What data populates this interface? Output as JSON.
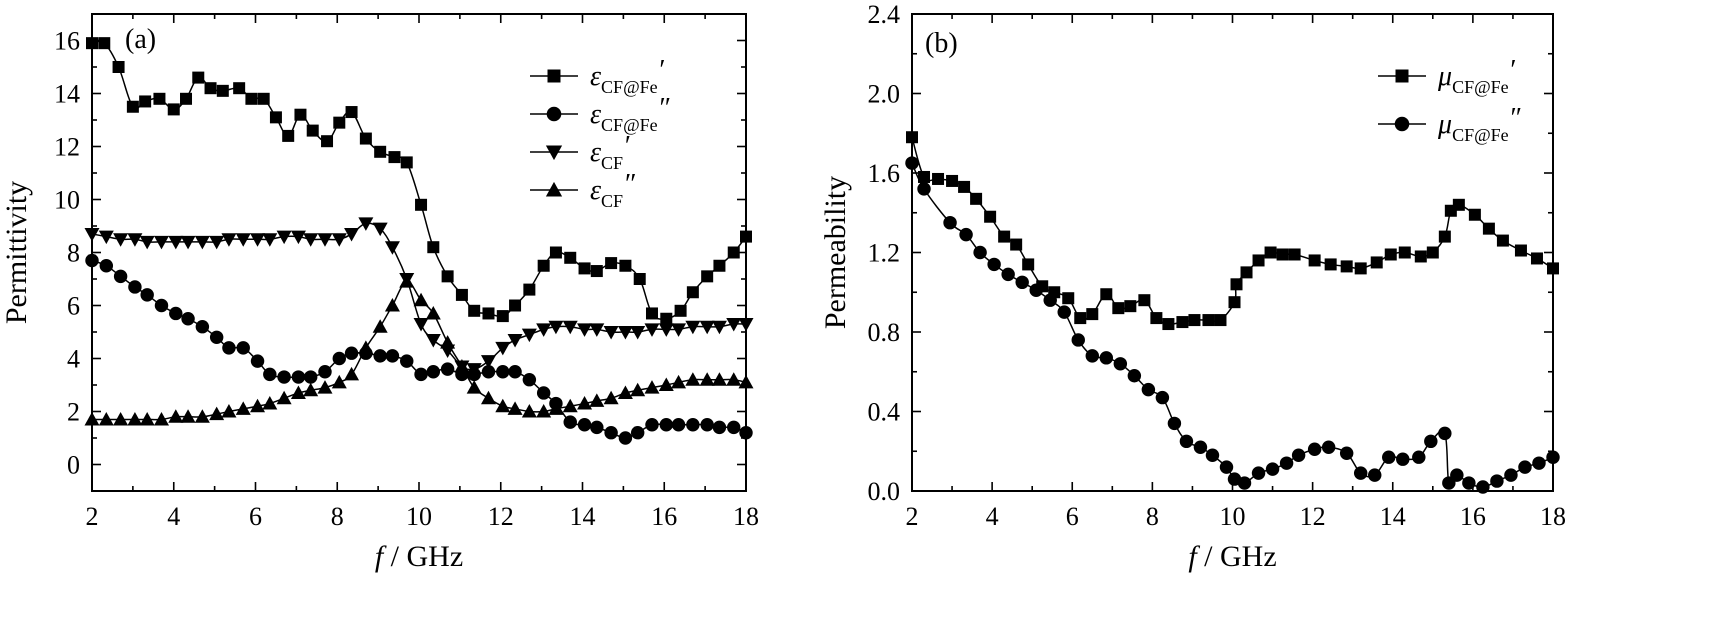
{
  "chart_data": [
    {
      "type": "line",
      "panel_label": "(a)",
      "xlabel_italic": "f",
      "xlabel_rest": " / GHz",
      "ylabel": "Permittivity",
      "xlim": [
        2,
        18
      ],
      "ylim": [
        -1,
        17
      ],
      "xticks": [
        2,
        4,
        6,
        8,
        10,
        12,
        14,
        16,
        18
      ],
      "yticks": [
        0,
        2,
        4,
        6,
        8,
        10,
        12,
        14,
        16
      ],
      "tick_decimals": 0,
      "grid": false,
      "legend_position": "top-right",
      "series": [
        {
          "symbol": "ε",
          "sub": "CF@Fe",
          "prime": "′",
          "marker": "square",
          "x": [
            2,
            2.3,
            2.65,
            3,
            3.3,
            3.65,
            4,
            4.3,
            4.6,
            4.9,
            5.2,
            5.6,
            5.9,
            6.2,
            6.5,
            6.8,
            7.1,
            7.4,
            7.75,
            8.05,
            8.35,
            8.7,
            9.05,
            9.4,
            9.7,
            10.05,
            10.35,
            10.7,
            11.05,
            11.35,
            11.7,
            12.05,
            12.35,
            12.7,
            13.05,
            13.35,
            13.7,
            14.05,
            14.35,
            14.7,
            15.05,
            15.4,
            15.7,
            16.05,
            16.4,
            16.7,
            17.05,
            17.35,
            17.7,
            18
          ],
          "y": [
            15.9,
            15.9,
            15.0,
            13.5,
            13.7,
            13.8,
            13.4,
            13.8,
            14.6,
            14.2,
            14.1,
            14.2,
            13.8,
            13.8,
            13.1,
            12.4,
            13.2,
            12.6,
            12.2,
            12.9,
            13.3,
            12.3,
            11.8,
            11.6,
            11.4,
            9.8,
            8.2,
            7.1,
            6.4,
            5.8,
            5.7,
            5.6,
            6.0,
            6.6,
            7.5,
            8.0,
            7.8,
            7.4,
            7.3,
            7.6,
            7.5,
            7.0,
            5.7,
            5.5,
            5.8,
            6.5,
            7.1,
            7.5,
            8.0,
            8.6
          ]
        },
        {
          "symbol": "ε",
          "sub": "CF@Fe",
          "prime": "″",
          "marker": "circle",
          "x": [
            2,
            2.35,
            2.7,
            3.05,
            3.35,
            3.7,
            4.05,
            4.35,
            4.7,
            5.05,
            5.35,
            5.7,
            6.05,
            6.35,
            6.7,
            7.05,
            7.35,
            7.7,
            8.05,
            8.35,
            8.7,
            9.05,
            9.35,
            9.7,
            10.05,
            10.35,
            10.7,
            11.05,
            11.35,
            11.7,
            12.05,
            12.35,
            12.7,
            13.05,
            13.35,
            13.7,
            14.05,
            14.35,
            14.7,
            15.05,
            15.35,
            15.7,
            16.05,
            16.35,
            16.7,
            17.05,
            17.35,
            17.7,
            18
          ],
          "y": [
            7.7,
            7.5,
            7.1,
            6.7,
            6.4,
            6.0,
            5.7,
            5.5,
            5.2,
            4.8,
            4.4,
            4.4,
            3.9,
            3.4,
            3.3,
            3.3,
            3.3,
            3.5,
            4.0,
            4.2,
            4.2,
            4.1,
            4.1,
            3.9,
            3.4,
            3.5,
            3.6,
            3.4,
            3.4,
            3.5,
            3.5,
            3.5,
            3.2,
            2.7,
            2.3,
            1.6,
            1.5,
            1.4,
            1.2,
            1.0,
            1.2,
            1.5,
            1.5,
            1.5,
            1.5,
            1.5,
            1.4,
            1.4,
            1.2
          ]
        },
        {
          "symbol": "ε",
          "sub": "CF",
          "prime": "′",
          "marker": "triangle-down",
          "x": [
            2,
            2.35,
            2.7,
            3.05,
            3.35,
            3.7,
            4.05,
            4.35,
            4.7,
            5.05,
            5.35,
            5.7,
            6.05,
            6.35,
            6.7,
            7.05,
            7.35,
            7.7,
            8.05,
            8.35,
            8.7,
            9.05,
            9.35,
            9.7,
            10.05,
            10.35,
            10.7,
            11.05,
            11.35,
            11.7,
            12.05,
            12.35,
            12.7,
            13.05,
            13.35,
            13.7,
            14.05,
            14.35,
            14.7,
            15.05,
            15.35,
            15.7,
            16.05,
            16.35,
            16.7,
            17.05,
            17.35,
            17.7,
            18
          ],
          "y": [
            8.7,
            8.6,
            8.5,
            8.5,
            8.4,
            8.4,
            8.4,
            8.4,
            8.4,
            8.4,
            8.5,
            8.5,
            8.5,
            8.5,
            8.6,
            8.6,
            8.5,
            8.5,
            8.5,
            8.7,
            9.1,
            8.9,
            8.2,
            7.0,
            5.3,
            4.7,
            4.3,
            3.7,
            3.6,
            3.9,
            4.4,
            4.7,
            4.9,
            5.1,
            5.2,
            5.2,
            5.1,
            5.1,
            5.0,
            5.0,
            5.0,
            5.1,
            5.1,
            5.1,
            5.2,
            5.2,
            5.2,
            5.3,
            5.3
          ]
        },
        {
          "symbol": "ε",
          "sub": "CF",
          "prime": "″",
          "marker": "triangle-up",
          "x": [
            2,
            2.35,
            2.7,
            3.05,
            3.35,
            3.7,
            4.05,
            4.35,
            4.7,
            5.05,
            5.35,
            5.7,
            6.05,
            6.35,
            6.7,
            7.05,
            7.35,
            7.7,
            8.05,
            8.35,
            8.7,
            9.05,
            9.35,
            9.7,
            10.05,
            10.35,
            10.7,
            11.05,
            11.35,
            11.7,
            12.05,
            12.35,
            12.7,
            13.05,
            13.35,
            13.7,
            14.05,
            14.35,
            14.7,
            15.05,
            15.35,
            15.7,
            16.05,
            16.35,
            16.7,
            17.05,
            17.35,
            17.7,
            18
          ],
          "y": [
            1.7,
            1.7,
            1.7,
            1.7,
            1.7,
            1.7,
            1.8,
            1.8,
            1.8,
            1.9,
            2.0,
            2.1,
            2.2,
            2.3,
            2.5,
            2.7,
            2.8,
            2.9,
            3.1,
            3.4,
            4.4,
            5.2,
            6.0,
            6.9,
            6.2,
            5.7,
            4.6,
            3.7,
            2.9,
            2.5,
            2.2,
            2.1,
            2.0,
            2.0,
            2.1,
            2.2,
            2.3,
            2.4,
            2.5,
            2.7,
            2.8,
            2.9,
            3.0,
            3.1,
            3.2,
            3.2,
            3.2,
            3.2,
            3.1
          ]
        }
      ]
    },
    {
      "type": "line",
      "panel_label": "(b)",
      "xlabel_italic": "f",
      "xlabel_rest": " / GHz",
      "ylabel": "Permeability",
      "xlim": [
        2,
        18
      ],
      "ylim": [
        0,
        2.4
      ],
      "xticks": [
        2,
        4,
        6,
        8,
        10,
        12,
        14,
        16,
        18
      ],
      "yticks": [
        0.0,
        0.4,
        0.8,
        1.2,
        1.6,
        2.0,
        2.4
      ],
      "tick_decimals": 1,
      "grid": false,
      "legend_position": "top-right",
      "series": [
        {
          "symbol": "μ",
          "sub": "CF@Fe",
          "prime": "′",
          "marker": "square",
          "x": [
            2,
            2.3,
            2.65,
            3,
            3.3,
            3.6,
            3.95,
            4.3,
            4.6,
            4.9,
            5.25,
            5.55,
            5.9,
            6.2,
            6.5,
            6.85,
            7.15,
            7.45,
            7.8,
            8.1,
            8.4,
            8.75,
            9.05,
            9.4,
            9.7,
            10.05,
            10.1,
            10.35,
            10.65,
            10.95,
            11.25,
            11.55,
            12.05,
            12.45,
            12.85,
            13.2,
            13.6,
            13.95,
            14.3,
            14.7,
            15.0,
            15.3,
            15.45,
            15.65,
            16.05,
            16.4,
            16.75,
            17.2,
            17.6,
            18
          ],
          "y": [
            1.78,
            1.58,
            1.57,
            1.56,
            1.53,
            1.47,
            1.38,
            1.28,
            1.24,
            1.14,
            1.03,
            1.0,
            0.97,
            0.87,
            0.89,
            0.99,
            0.92,
            0.93,
            0.96,
            0.87,
            0.84,
            0.85,
            0.86,
            0.86,
            0.86,
            0.95,
            1.04,
            1.1,
            1.16,
            1.2,
            1.19,
            1.19,
            1.16,
            1.14,
            1.13,
            1.12,
            1.15,
            1.19,
            1.2,
            1.18,
            1.2,
            1.28,
            1.41,
            1.44,
            1.39,
            1.32,
            1.26,
            1.21,
            1.17,
            1.12
          ]
        },
        {
          "symbol": "μ",
          "sub": "CF@Fe",
          "prime": "″",
          "marker": "circle",
          "x": [
            2,
            2.3,
            2.95,
            3.35,
            3.7,
            4.05,
            4.4,
            4.75,
            5.1,
            5.45,
            5.8,
            6.15,
            6.5,
            6.85,
            7.2,
            7.55,
            7.9,
            8.25,
            8.55,
            8.85,
            9.2,
            9.5,
            9.85,
            10.05,
            10.3,
            10.65,
            11.0,
            11.35,
            11.65,
            12.05,
            12.4,
            12.85,
            13.2,
            13.55,
            13.9,
            14.25,
            14.65,
            14.95,
            15.3,
            15.4,
            15.6,
            15.9,
            16.25,
            16.6,
            16.95,
            17.3,
            17.65,
            18
          ],
          "y": [
            1.65,
            1.52,
            1.35,
            1.29,
            1.2,
            1.14,
            1.09,
            1.05,
            1.01,
            0.96,
            0.9,
            0.76,
            0.68,
            0.67,
            0.64,
            0.58,
            0.51,
            0.47,
            0.34,
            0.25,
            0.22,
            0.18,
            0.12,
            0.06,
            0.04,
            0.09,
            0.11,
            0.14,
            0.18,
            0.21,
            0.22,
            0.19,
            0.09,
            0.08,
            0.17,
            0.16,
            0.17,
            0.25,
            0.29,
            0.04,
            0.08,
            0.04,
            0.02,
            0.05,
            0.08,
            0.12,
            0.14,
            0.17
          ]
        }
      ]
    }
  ]
}
